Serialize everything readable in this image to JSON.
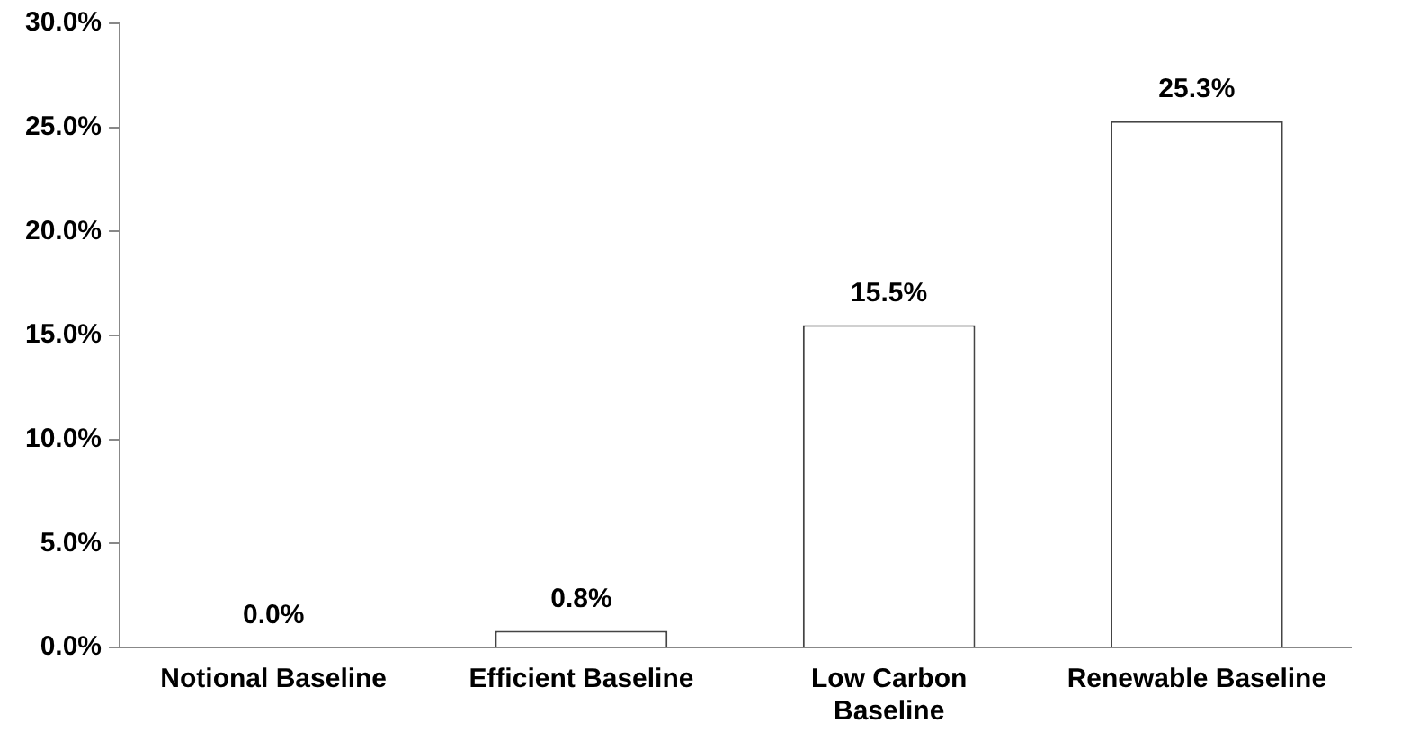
{
  "chart_data": {
    "type": "bar",
    "categories": [
      "Notional Baseline",
      "Efficient Baseline",
      "Low Carbon Baseline",
      "Renewable Baseline"
    ],
    "values": [
      0.0,
      0.8,
      15.5,
      25.3
    ],
    "value_labels": [
      "0.0%",
      "0.8%",
      "15.5%",
      "25.3%"
    ],
    "color": "#ffffff",
    "ylim": [
      0,
      30
    ],
    "yticks": [
      {
        "value": 0,
        "label": "0.0%"
      },
      {
        "value": 5,
        "label": "5.0%"
      },
      {
        "value": 10,
        "label": "10.0%"
      },
      {
        "value": 15,
        "label": "15.0%"
      },
      {
        "value": 20,
        "label": "20.0%"
      },
      {
        "value": 25,
        "label": "25.0%"
      },
      {
        "value": 30,
        "label": "30.0%"
      }
    ],
    "grid": false,
    "legend": false
  }
}
